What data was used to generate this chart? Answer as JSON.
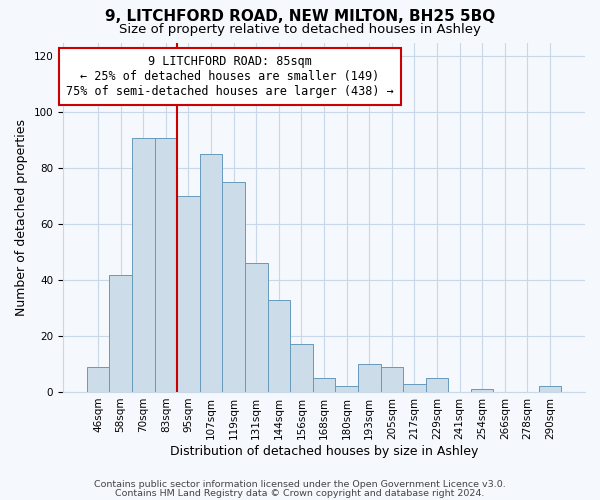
{
  "title": "9, LITCHFORD ROAD, NEW MILTON, BH25 5BQ",
  "subtitle": "Size of property relative to detached houses in Ashley",
  "xlabel": "Distribution of detached houses by size in Ashley",
  "ylabel": "Number of detached properties",
  "bin_labels": [
    "46sqm",
    "58sqm",
    "70sqm",
    "83sqm",
    "95sqm",
    "107sqm",
    "119sqm",
    "131sqm",
    "144sqm",
    "156sqm",
    "168sqm",
    "180sqm",
    "193sqm",
    "205sqm",
    "217sqm",
    "229sqm",
    "241sqm",
    "254sqm",
    "266sqm",
    "278sqm",
    "290sqm"
  ],
  "bar_values": [
    9,
    42,
    91,
    91,
    70,
    85,
    75,
    46,
    33,
    17,
    5,
    2,
    10,
    9,
    3,
    5,
    0,
    1,
    0,
    0,
    2
  ],
  "bar_color": "#ccdce8",
  "bar_edge_color": "#6699bb",
  "vline_x_index": 3,
  "vline_color": "#cc0000",
  "annotation_line1": "9 LITCHFORD ROAD: 85sqm",
  "annotation_line2": "← 25% of detached houses are smaller (149)",
  "annotation_line3": "75% of semi-detached houses are larger (438) →",
  "annotation_box_edge": "#cc0000",
  "ylim": [
    0,
    125
  ],
  "yticks": [
    0,
    20,
    40,
    60,
    80,
    100,
    120
  ],
  "footer1": "Contains HM Land Registry data © Crown copyright and database right 2024.",
  "footer2": "Contains public sector information licensed under the Open Government Licence v3.0.",
  "bg_color": "#f5f8fc",
  "grid_color": "#c8d8e8",
  "title_fontsize": 11,
  "subtitle_fontsize": 9.5,
  "axis_label_fontsize": 9,
  "tick_fontsize": 7.5,
  "footer_fontsize": 6.8,
  "annotation_fontsize": 8.5
}
